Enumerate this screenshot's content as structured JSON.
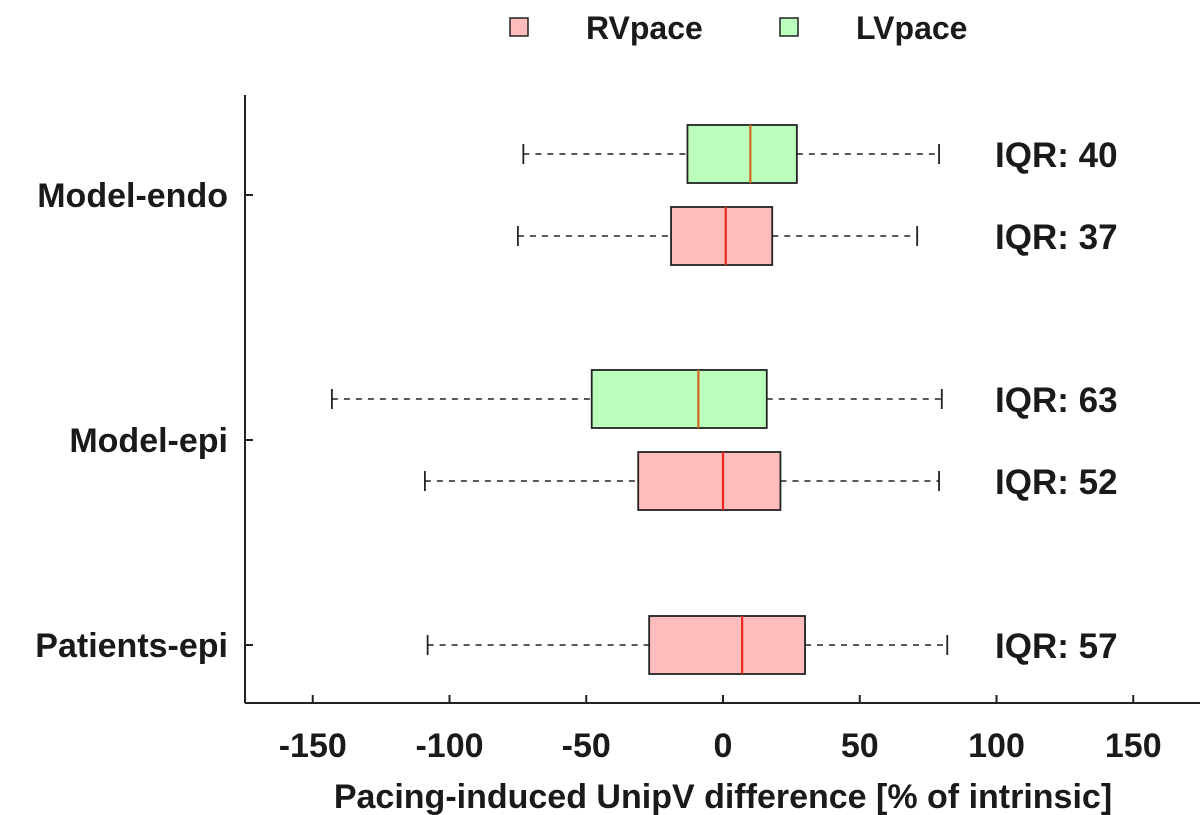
{
  "chart_data": {
    "type": "box",
    "orientation": "horizontal",
    "title": "",
    "xlabel": "Pacing-induced UnipV difference [% of intrinsic]",
    "ylabel": "",
    "xlim": [
      -175,
      175
    ],
    "xticks": [
      -150,
      -100,
      -50,
      0,
      50,
      100,
      150
    ],
    "grid": false,
    "legend": {
      "placement": "top-center",
      "entries": [
        {
          "name": "RVpace",
          "color": "#ffbcbc"
        },
        {
          "name": "LVpace",
          "color": "#bcffbc"
        }
      ]
    },
    "categories": [
      "Model-endo",
      "Model-epi",
      "Patients-epi"
    ],
    "series": [
      {
        "name": "LVpace",
        "fill": "#bcffbc",
        "median_color": "#d2691e",
        "boxes": [
          {
            "category": "Model-endo",
            "whisker_low": -73,
            "q1": -13,
            "median": 10,
            "q3": 27,
            "whisker_high": 79,
            "annotation": "IQR: 40"
          },
          {
            "category": "Model-epi",
            "whisker_low": -143,
            "q1": -48,
            "median": -9,
            "q3": 16,
            "whisker_high": 80,
            "annotation": "IQR: 63"
          }
        ]
      },
      {
        "name": "RVpace",
        "fill": "#ffbcbc",
        "median_color": "#e8281f",
        "boxes": [
          {
            "category": "Model-endo",
            "whisker_low": -75,
            "q1": -19,
            "median": 1,
            "q3": 18,
            "whisker_high": 71,
            "annotation": "IQR: 37"
          },
          {
            "category": "Model-epi",
            "whisker_low": -109,
            "q1": -31,
            "median": 0,
            "q3": 21,
            "whisker_high": 79,
            "annotation": "IQR: 52"
          },
          {
            "category": "Patients-epi",
            "whisker_low": -108,
            "q1": -27,
            "median": 7,
            "q3": 30,
            "whisker_high": 82,
            "annotation": "IQR: 57"
          }
        ]
      }
    ]
  }
}
